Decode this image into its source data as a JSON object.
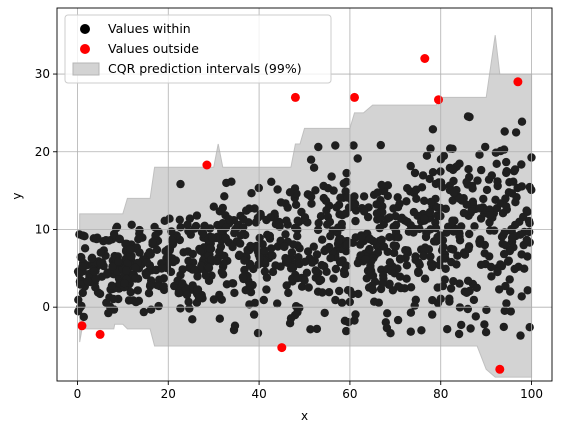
{
  "chart_data": {
    "type": "scatter",
    "title": "",
    "xlabel": "x",
    "ylabel": "y",
    "xlim": [
      -4.5,
      104.5
    ],
    "ylim": [
      -9.5,
      38.5
    ],
    "xticks": [
      0,
      20,
      40,
      60,
      80,
      100
    ],
    "yticks": [
      0,
      10,
      20,
      30
    ],
    "grid": true,
    "legend": {
      "placement": "top-left"
    },
    "series": [
      {
        "name": "Values within",
        "kind": "scatter",
        "color": "#000000"
      },
      {
        "name": "Values outside",
        "kind": "scatter",
        "color": "#ff0000"
      },
      {
        "name": "CQR prediction intervals (99%)",
        "kind": "band",
        "color": "#d3d3d3"
      }
    ],
    "band": {
      "x": [
        0.5,
        1,
        8,
        8.2,
        10,
        11,
        16,
        17,
        20,
        21,
        29,
        30,
        31,
        32,
        39,
        40,
        47,
        48,
        49,
        50,
        53,
        55,
        60,
        61,
        63,
        65,
        75,
        76,
        78,
        79,
        80,
        81,
        88,
        90,
        92,
        93,
        95,
        96,
        97,
        98,
        100
      ],
      "lower": [
        -4.5,
        -2.8,
        -2.8,
        -2.2,
        -2.2,
        -2.8,
        -2.8,
        -5,
        -5,
        -5,
        -5,
        -5,
        -5,
        -5,
        -5,
        -5,
        -5,
        -5,
        -5,
        -5,
        -5,
        -5,
        -5,
        -5,
        -5,
        -5,
        -5,
        -5,
        -5,
        -5,
        -5,
        -5,
        -5,
        -8,
        -9,
        -9,
        -9,
        -9,
        -9,
        -9,
        -9
      ],
      "upper": [
        12,
        12,
        12,
        12,
        12,
        14,
        14,
        18,
        18,
        18,
        18,
        18,
        21,
        18,
        18,
        18,
        18,
        21,
        21,
        23,
        23,
        23,
        23,
        25,
        25,
        26,
        26,
        26,
        26,
        26,
        27,
        27,
        27,
        27,
        35,
        30,
        30,
        30,
        30,
        30,
        30
      ]
    },
    "points_outside": {
      "x": [
        1,
        5,
        28.5,
        45,
        48,
        61,
        76.5,
        79.5,
        93,
        97
      ],
      "y": [
        -2.4,
        -3.5,
        18.3,
        -5.2,
        27,
        27,
        32,
        26.7,
        -8,
        29
      ]
    },
    "points_within": {
      "generator": "random-scatter",
      "count": 1000,
      "x_range": [
        0,
        100
      ]
    }
  }
}
